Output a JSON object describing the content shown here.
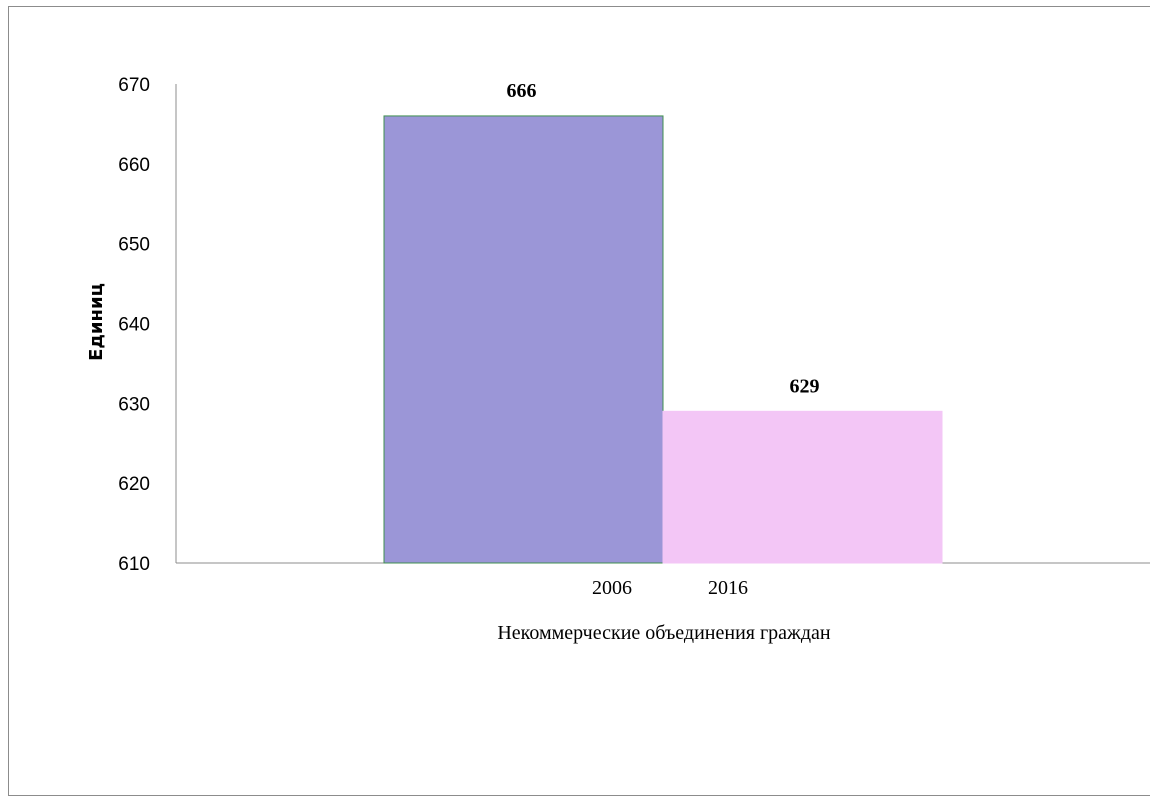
{
  "chart_data": {
    "type": "bar",
    "categories": [
      "2006",
      "2016"
    ],
    "values": [
      666,
      629
    ],
    "data_labels": [
      "666",
      "629"
    ],
    "colors": [
      "#9b96d7",
      "#f3c6f6"
    ],
    "bar_border_colors": [
      "#3f8f4f",
      "#f3c6f6"
    ],
    "title": "",
    "xlabel": "Некоммерческие объединения граждан",
    "ylabel": "Единиц",
    "ylim": [
      610,
      670
    ],
    "yticks": [
      "610",
      "620",
      "630",
      "640",
      "650",
      "660",
      "670"
    ],
    "grid": false,
    "legend": "none"
  }
}
